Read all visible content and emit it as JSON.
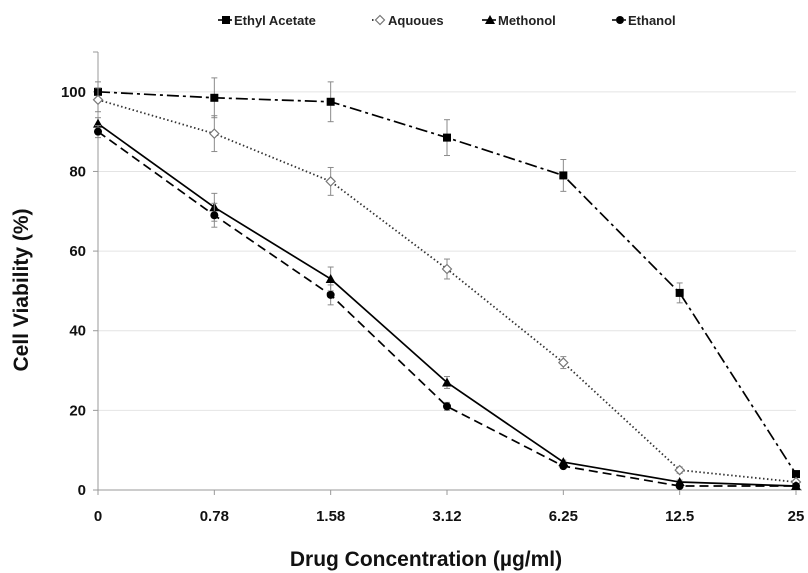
{
  "chart_data": {
    "type": "line",
    "title": "",
    "xlabel": "Drug Concentration (µg/ml)",
    "ylabel": "Cell Viability (%)",
    "categories": [
      "0",
      "0.78",
      "1.58",
      "3.12",
      "6.25",
      "12.5",
      "25"
    ],
    "ylim": [
      0,
      110
    ],
    "yticks": [
      0,
      20,
      40,
      60,
      80,
      100
    ],
    "grid": true,
    "legend_position": "top",
    "series": [
      {
        "name": "Ethyl Acetate",
        "marker": "square",
        "dash": "dash-dot",
        "color": "#000000",
        "values": [
          100,
          98.5,
          97.5,
          88.5,
          79,
          49.5,
          4
        ],
        "errors": [
          2.5,
          5,
          5,
          4.5,
          4,
          2.5,
          0.5
        ]
      },
      {
        "name": "Aquoues",
        "marker": "open-diamond",
        "dash": "dotted",
        "color": "#000000",
        "values": [
          98,
          89.5,
          77.5,
          55.5,
          32,
          5,
          2
        ],
        "errors": [
          3,
          4.5,
          3.5,
          2.5,
          1.5,
          0.8,
          0.5
        ]
      },
      {
        "name": "Methonol",
        "marker": "triangle",
        "dash": "solid",
        "color": "#000000",
        "values": [
          92,
          71,
          53,
          27,
          7,
          2,
          1
        ],
        "errors": [
          1.5,
          3.5,
          3,
          1.5,
          0.5,
          0.5,
          0.3
        ]
      },
      {
        "name": "Ethanol",
        "marker": "circle",
        "dash": "dashed",
        "color": "#000000",
        "values": [
          90,
          69,
          49,
          21,
          6,
          1,
          1
        ],
        "errors": [
          1.5,
          3,
          2.5,
          1,
          0.5,
          0.3,
          0.3
        ]
      }
    ]
  }
}
